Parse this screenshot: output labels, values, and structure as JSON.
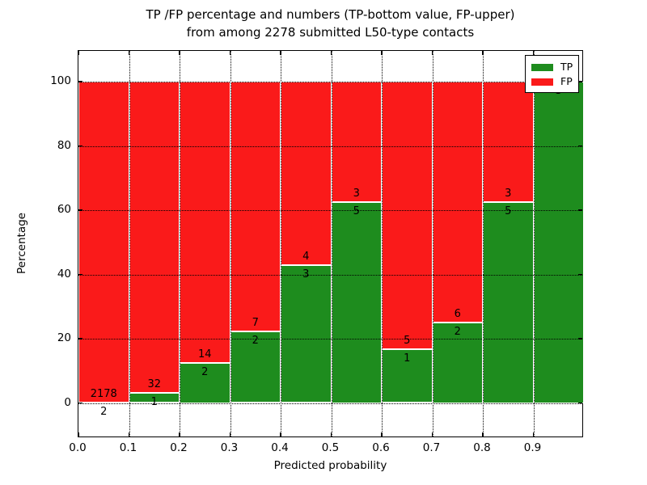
{
  "figure": {
    "title_line1": "TP /FP percentage and numbers (TP-bottom value, FP-upper)",
    "title_line2": "from among 2278 submitted L50-type contacts"
  },
  "axes": {
    "xlabel": "Predicted probability",
    "ylabel": "Percentage",
    "xtick_labels": [
      "0.0",
      "0.1",
      "0.2",
      "0.3",
      "0.4",
      "0.5",
      "0.6",
      "0.7",
      "0.8",
      "0.9"
    ],
    "ytick_labels": [
      "0",
      "20",
      "40",
      "60",
      "80",
      "100"
    ]
  },
  "legend": {
    "items": [
      {
        "label": "TP",
        "color": "#1e8c1e"
      },
      {
        "label": "FP",
        "color": "#fa1a1a"
      }
    ]
  },
  "colors": {
    "tp": "#1e8c1e",
    "fp": "#fa1a1a",
    "grid": "#000000",
    "spine": "#000000",
    "bar_edge": "#ffffff",
    "text": "#000000"
  },
  "chart_data": {
    "type": "bar",
    "stacked": true,
    "orientation": "vertical",
    "title": "TP /FP percentage and numbers (TP-bottom value, FP-upper) from among 2278 submitted L50-type contacts",
    "xlabel": "Predicted probability",
    "ylabel": "Percentage",
    "total_contacts": 2278,
    "bin_width": 0.1,
    "xlim": [
      0.0,
      1.0
    ],
    "ylim": [
      -11,
      110
    ],
    "xticks": [
      0.0,
      0.1,
      0.2,
      0.3,
      0.4,
      0.5,
      0.6,
      0.7,
      0.8,
      0.9
    ],
    "yticks": [
      0,
      20,
      40,
      60,
      80,
      100
    ],
    "grid": "dotted",
    "legend_position": "upper right",
    "categories": [
      "0.0-0.1",
      "0.1-0.2",
      "0.2-0.3",
      "0.3-0.4",
      "0.4-0.5",
      "0.5-0.6",
      "0.6-0.7",
      "0.7-0.8",
      "0.8-0.9",
      "0.9-1.0"
    ],
    "series": [
      {
        "name": "TP",
        "counts": [
          2,
          1,
          2,
          2,
          3,
          5,
          1,
          2,
          5,
          3
        ],
        "pct": [
          0.09,
          3.03,
          12.5,
          22.22,
          42.86,
          62.5,
          16.67,
          25.0,
          62.5,
          100.0
        ]
      },
      {
        "name": "FP",
        "counts": [
          2178,
          32,
          14,
          7,
          4,
          3,
          5,
          6,
          3,
          0
        ],
        "pct": [
          99.91,
          96.97,
          87.5,
          77.78,
          57.14,
          37.5,
          83.33,
          75.0,
          37.5,
          0.0
        ]
      }
    ]
  }
}
